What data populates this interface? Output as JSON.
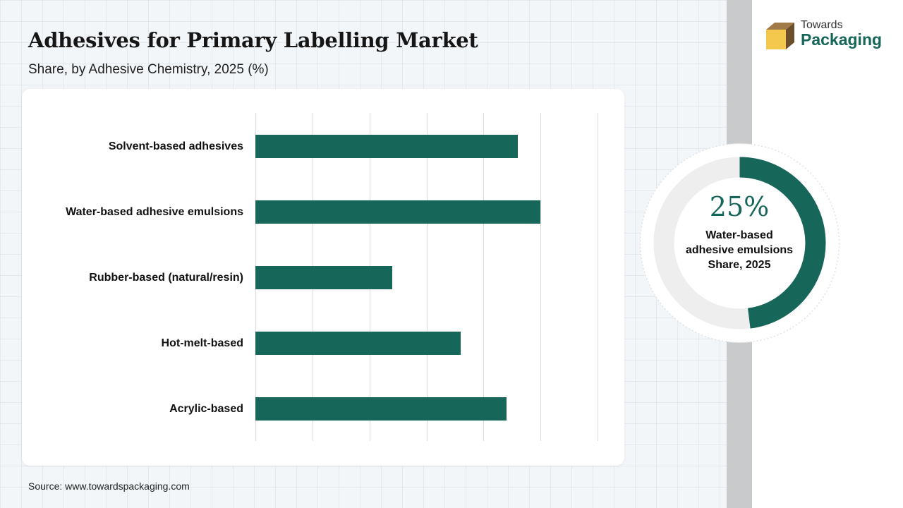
{
  "header": {
    "title": "Adhesives for Primary Labelling Market",
    "subtitle": "Share, by Adhesive Chemistry, 2025 (%)"
  },
  "brand": {
    "line1": "Towards",
    "line2": "Packaging"
  },
  "chart_data": {
    "type": "bar",
    "orientation": "horizontal",
    "categories": [
      "Solvent-based adhesives",
      "Water-based adhesive emulsions",
      "Rubber-based (natural/resin)",
      "Hot-melt-based",
      "Acrylic-based"
    ],
    "values": [
      23,
      25,
      12,
      18,
      22
    ],
    "xlim": [
      0,
      30
    ],
    "grid": true,
    "bar_color": "#16665a"
  },
  "highlight": {
    "percent": "25%",
    "value": 25,
    "label": "Water-based adhesive emulsions Share, 2025",
    "ring_color": "#16665a",
    "track_color": "#eeeeee"
  },
  "footer": {
    "source": "Source: www.towardspackaging.com"
  },
  "colors": {
    "accent": "#16665a",
    "logo_yellow": "#f4c84c",
    "logo_brown": "#8b6a3e"
  }
}
